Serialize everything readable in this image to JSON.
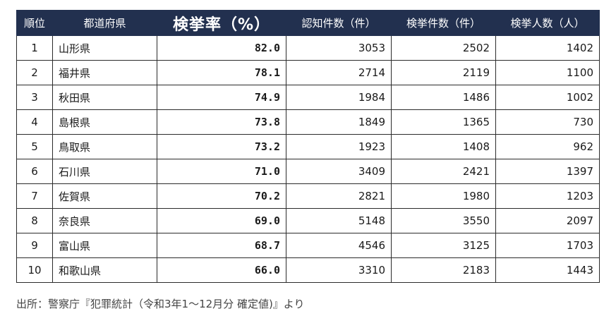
{
  "table": {
    "headers": [
      "順位",
      "都道府県",
      "検挙率（%）",
      "認知件数（件）",
      "検挙件数（件）",
      "検挙人数（人）"
    ],
    "rows": [
      {
        "rank": "1",
        "prefecture": "山形県",
        "rate": "82.0",
        "recognized": "3053",
        "cleared": "2502",
        "arrested": "1402"
      },
      {
        "rank": "2",
        "prefecture": "福井県",
        "rate": "78.1",
        "recognized": "2714",
        "cleared": "2119",
        "arrested": "1100"
      },
      {
        "rank": "3",
        "prefecture": "秋田県",
        "rate": "74.9",
        "recognized": "1984",
        "cleared": "1486",
        "arrested": "1002"
      },
      {
        "rank": "4",
        "prefecture": "島根県",
        "rate": "73.8",
        "recognized": "1849",
        "cleared": "1365",
        "arrested": "730"
      },
      {
        "rank": "5",
        "prefecture": "鳥取県",
        "rate": "73.2",
        "recognized": "1923",
        "cleared": "1408",
        "arrested": "962"
      },
      {
        "rank": "6",
        "prefecture": "石川県",
        "rate": "71.0",
        "recognized": "3409",
        "cleared": "2421",
        "arrested": "1397"
      },
      {
        "rank": "7",
        "prefecture": "佐賀県",
        "rate": "70.2",
        "recognized": "2821",
        "cleared": "1980",
        "arrested": "1203"
      },
      {
        "rank": "8",
        "prefecture": "奈良県",
        "rate": "69.0",
        "recognized": "5148",
        "cleared": "3550",
        "arrested": "2097"
      },
      {
        "rank": "9",
        "prefecture": "富山県",
        "rate": "68.7",
        "recognized": "4546",
        "cleared": "3125",
        "arrested": "1703"
      },
      {
        "rank": "10",
        "prefecture": "和歌山県",
        "rate": "66.0",
        "recognized": "3310",
        "cleared": "2183",
        "arrested": "1443"
      }
    ]
  },
  "source": "出所：警察庁『犯罪統計（令和3年1～12月分 確定値)』より",
  "colors": {
    "header_bg": "#22304f",
    "header_text": "#ffffff",
    "border": "#2b2b2b"
  }
}
